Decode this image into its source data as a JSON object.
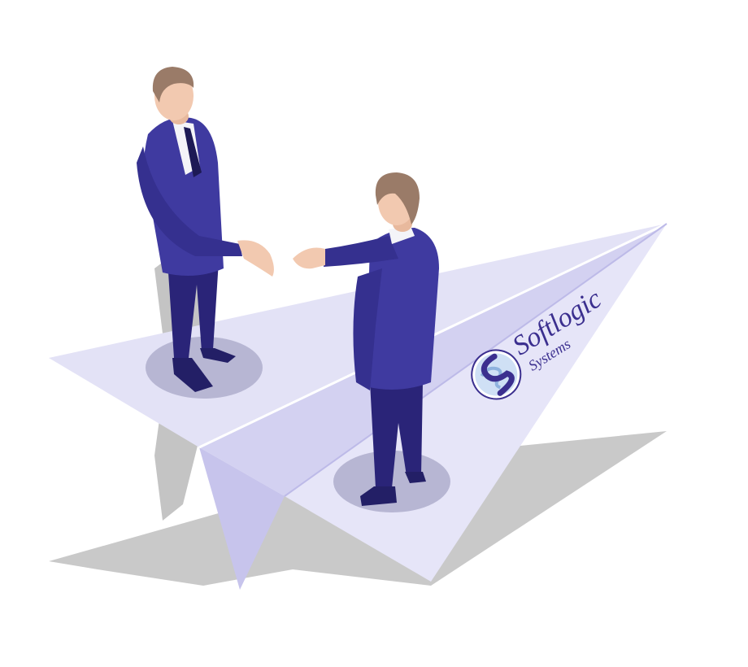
{
  "scene": {
    "palette": {
      "background": "#ffffff",
      "plane_light": "#e4e3f7",
      "plane_mid": "#cfcdf0",
      "plane_dark": "#b9b6e8",
      "shadow": "#c7c7c7",
      "suit": "#3f3aa0",
      "suit_dark": "#2d2880",
      "trousers": "#2a2478",
      "skin": "#f2c9b0",
      "hair": "#9a7b68",
      "shirt": "#f4f4f8",
      "tie": "#1d1a55",
      "brand": "#3b2f8f"
    }
  },
  "logo": {
    "name": "Softlogic",
    "subtitle": "Systems",
    "icon": "globe-s-emblem-icon"
  }
}
